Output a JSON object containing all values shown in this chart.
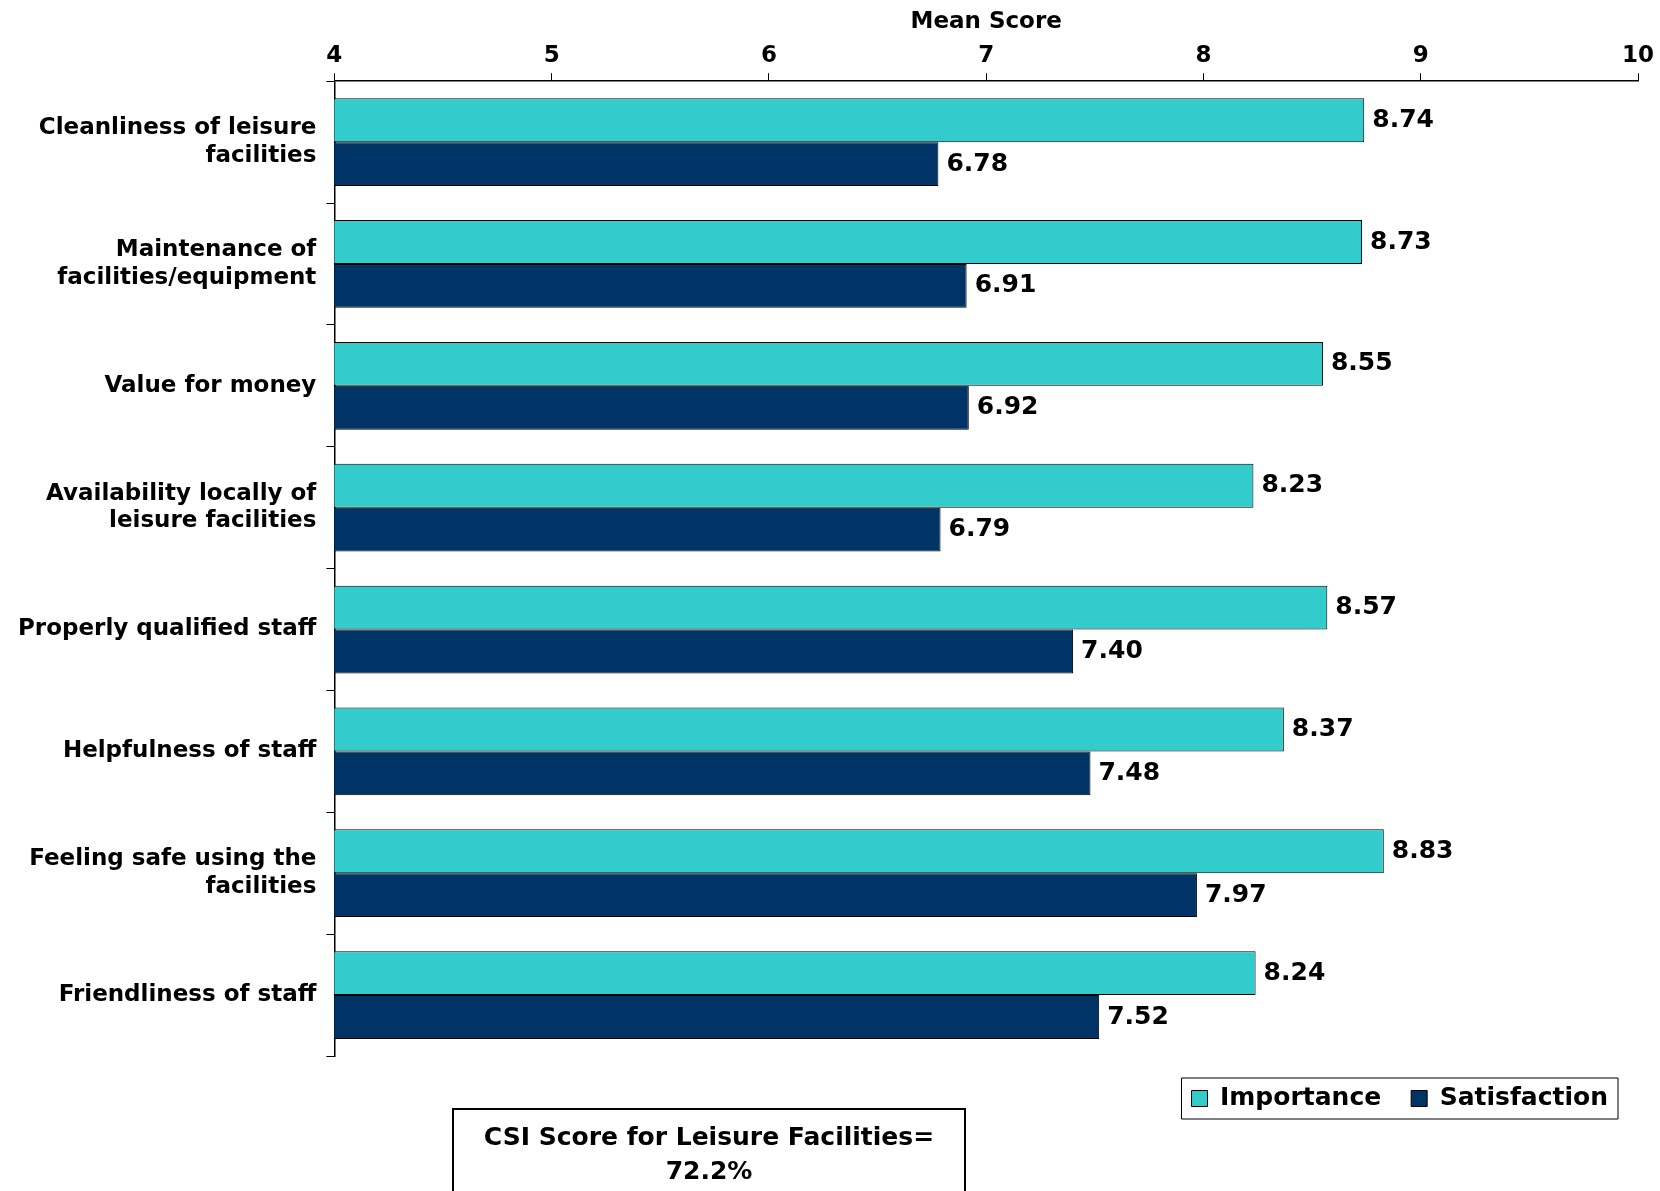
{
  "chart_data": {
    "type": "bar",
    "orientation": "horizontal",
    "xlabel": "Mean Score",
    "categories": [
      "Cleanliness of leisure facilities",
      "Maintenance of facilities/equipment",
      "Value for money",
      "Availability locally of leisure facilities",
      "Properly qualified staff",
      "Helpfulness of staff",
      "Feeling safe using the facilities",
      "Friendliness of staff"
    ],
    "series": [
      {
        "name": "Importance",
        "color": "#33cccc",
        "values": [
          8.74,
          8.73,
          8.55,
          8.23,
          8.57,
          8.37,
          8.83,
          8.24
        ],
        "value_labels": [
          "8.74",
          "8.73",
          "8.55",
          "8.23",
          "8.57",
          "8.37",
          "8.83",
          "8.24"
        ]
      },
      {
        "name": "Satisfaction",
        "color": "#003366",
        "values": [
          6.78,
          6.91,
          6.92,
          6.79,
          7.4,
          7.48,
          7.97,
          7.52
        ],
        "value_labels": [
          "6.78",
          "6.91",
          "6.92",
          "6.79",
          "7.40",
          "7.48",
          "7.97",
          "7.52"
        ]
      }
    ],
    "xlim": [
      4,
      10
    ],
    "xticks": [
      4,
      5,
      6,
      7,
      8,
      9,
      10
    ],
    "grid": false,
    "legend": "bottom right",
    "annotations": [
      "CSI Score for Leisure Facilities= 72.2%"
    ]
  }
}
